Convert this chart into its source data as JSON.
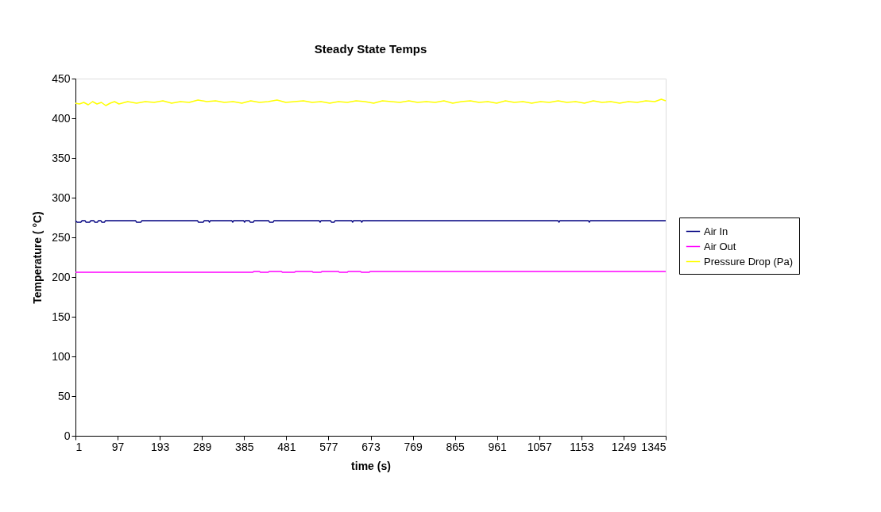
{
  "chart_data": {
    "type": "line",
    "title": "Steady State Temps",
    "xlabel": "time (s)",
    "ylabel": "Temperature ( °C)",
    "xlim": [
      1,
      1345
    ],
    "xticks": [
      1,
      97,
      193,
      289,
      385,
      481,
      577,
      673,
      769,
      865,
      961,
      1057,
      1153,
      1249,
      1345
    ],
    "ylim": [
      0,
      450
    ],
    "yticks": [
      0,
      50,
      100,
      150,
      200,
      250,
      300,
      350,
      400,
      450
    ],
    "grid": false,
    "legend": "right",
    "marker": "none",
    "line_style": "solid",
    "series": [
      {
        "name": "Air In",
        "color": "#000080",
        "x": [
          1,
          5,
          13,
          16,
          23,
          25,
          33,
          36,
          43,
          45,
          51,
          53,
          59,
          61,
          67,
          69,
          138,
          140,
          150,
          152,
          279,
          281,
          292,
          294,
          304,
          306,
          308,
          357,
          359,
          361,
          384,
          386,
          388,
          397,
          399,
          406,
          408,
          441,
          443,
          451,
          453,
          556,
          558,
          560,
          582,
          584,
          590,
          592,
          630,
          632,
          634,
          651,
          653,
          655,
          1100,
          1102,
          1104,
          1169,
          1171,
          1173,
          1345
        ],
        "values": [
          271,
          269,
          269,
          271,
          271,
          269,
          269,
          271,
          271,
          269,
          269,
          271,
          271,
          269,
          269,
          271,
          271,
          269,
          269,
          271,
          271,
          269,
          269,
          271,
          271,
          269,
          271,
          271,
          269,
          271,
          271,
          269,
          271,
          271,
          269,
          269,
          271,
          271,
          269,
          269,
          271,
          271,
          269,
          271,
          271,
          269,
          269,
          271,
          271,
          269,
          271,
          271,
          269,
          271,
          271,
          269,
          271,
          271,
          269,
          271,
          271
        ]
      },
      {
        "name": "Air Out",
        "color": "#ff00ff",
        "x": [
          1,
          405,
          407,
          420,
          422,
          440,
          442,
          470,
          472,
          500,
          502,
          540,
          542,
          560,
          562,
          600,
          602,
          620,
          622,
          650,
          652,
          670,
          672,
          1345
        ],
        "values": [
          206,
          206,
          207,
          207,
          206,
          206,
          207,
          207,
          206,
          206,
          207,
          207,
          206,
          206,
          207,
          207,
          206,
          206,
          207,
          207,
          206,
          206,
          207,
          207
        ]
      },
      {
        "name": "Pressure Drop (Pa)",
        "color": "#ffff00",
        "x": [
          1,
          10,
          20,
          30,
          40,
          50,
          60,
          70,
          80,
          90,
          100,
          120,
          140,
          160,
          180,
          200,
          220,
          240,
          260,
          280,
          300,
          320,
          340,
          360,
          380,
          400,
          420,
          440,
          460,
          480,
          500,
          520,
          540,
          560,
          580,
          600,
          620,
          640,
          660,
          680,
          700,
          720,
          740,
          760,
          780,
          800,
          820,
          840,
          860,
          880,
          900,
          920,
          940,
          960,
          980,
          1000,
          1020,
          1040,
          1060,
          1080,
          1100,
          1120,
          1140,
          1160,
          1180,
          1200,
          1220,
          1240,
          1260,
          1280,
          1300,
          1320,
          1335,
          1345
        ],
        "values": [
          419,
          418,
          420,
          417,
          421,
          418,
          420,
          416,
          419,
          421,
          418,
          421,
          419,
          421,
          420,
          422,
          419,
          421,
          420,
          423,
          421,
          422,
          420,
          421,
          419,
          422,
          420,
          421,
          423,
          420,
          421,
          422,
          420,
          421,
          419,
          421,
          420,
          422,
          421,
          419,
          422,
          421,
          420,
          422,
          420,
          421,
          420,
          422,
          419,
          421,
          422,
          420,
          421,
          419,
          422,
          420,
          421,
          419,
          421,
          420,
          422,
          420,
          421,
          419,
          422,
          420,
          421,
          419,
          421,
          420,
          422,
          421,
          424,
          422
        ]
      }
    ]
  }
}
